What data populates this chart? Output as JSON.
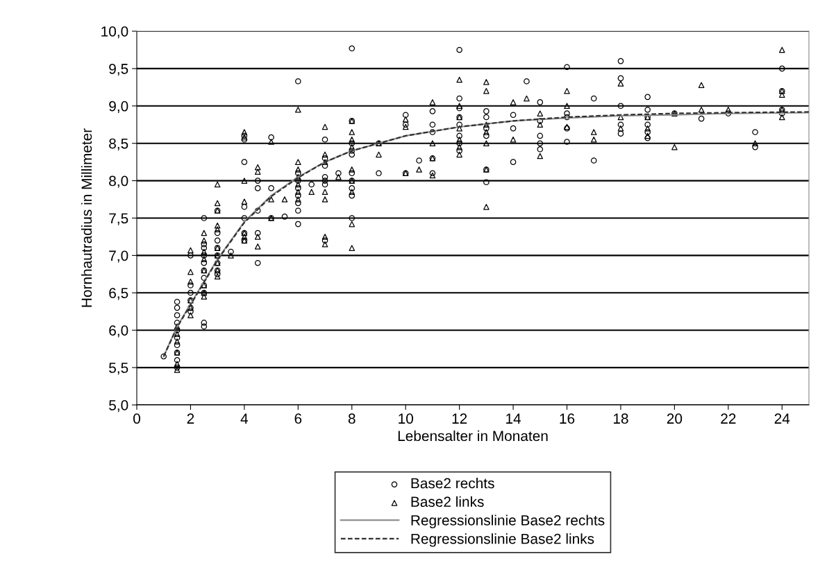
{
  "chart_data": {
    "type": "scatter",
    "xlabel": "Lebensalter in Monaten",
    "ylabel": "Hornhautradius in Millimeter",
    "xlim": [
      0,
      25
    ],
    "xticks": [
      0,
      2,
      4,
      6,
      8,
      10,
      12,
      14,
      16,
      18,
      20,
      22,
      24
    ],
    "ylim": [
      5,
      10
    ],
    "yticks": [
      {
        "value": 5,
        "label": "5,0"
      },
      {
        "value": 5.5,
        "label": "5,5"
      },
      {
        "value": 6,
        "label": "6,0"
      },
      {
        "value": 6.5,
        "label": "6,5"
      },
      {
        "value": 7,
        "label": "7,0"
      },
      {
        "value": 7.5,
        "label": "7,5"
      },
      {
        "value": 8,
        "label": "8,0"
      },
      {
        "value": 8.5,
        "label": "8,5"
      },
      {
        "value": 9,
        "label": "9,0"
      },
      {
        "value": 9.5,
        "label": "9,5"
      },
      {
        "value": 10,
        "label": "10,0"
      }
    ],
    "grid": "y",
    "legend": "bottom",
    "series": [
      {
        "name": "Base2 rechts",
        "marker": "circle",
        "color": "#000000",
        "x": [
          1,
          1.5,
          1.5,
          1.5,
          1.5,
          1.5,
          1.5,
          1.5,
          1.5,
          1.5,
          1.5,
          2,
          2,
          2,
          2,
          2,
          2,
          2.5,
          2.5,
          2.5,
          2.5,
          2.5,
          2.5,
          2.5,
          2.5,
          2.5,
          2.5,
          2.5,
          3,
          3,
          3,
          3,
          3,
          3,
          3,
          3,
          3.5,
          4,
          4,
          4,
          4,
          4,
          4,
          4,
          4.5,
          4.5,
          4.5,
          4.5,
          4.5,
          5,
          5,
          5,
          5.5,
          6,
          6,
          6,
          6,
          6,
          6,
          6,
          6,
          6.5,
          7,
          7,
          7,
          7,
          7,
          7,
          7,
          7.5,
          8,
          8,
          8,
          8,
          8,
          8,
          8,
          8,
          8,
          8,
          9,
          9,
          10,
          10,
          10,
          10.5,
          11,
          11,
          11,
          11,
          11,
          12,
          12,
          12,
          12,
          12,
          12,
          12,
          12,
          13,
          13,
          13,
          13,
          13,
          13,
          14,
          14,
          14,
          14.5,
          15,
          15,
          15,
          15,
          15,
          16,
          16,
          16,
          16,
          16,
          17,
          17,
          18,
          18,
          18,
          18,
          18,
          19,
          19,
          19,
          19,
          19,
          19,
          20,
          21,
          22,
          23,
          23,
          24,
          24,
          24,
          24
        ],
        "values": [
          5.65,
          6.38,
          6.3,
          6.2,
          6.1,
          6.0,
          5.9,
          5.8,
          5.7,
          5.6,
          5.5,
          7.0,
          6.6,
          6.5,
          6.4,
          6.3,
          6.25,
          7.5,
          7.15,
          7.1,
          7.0,
          6.9,
          6.8,
          6.7,
          6.6,
          6.5,
          6.1,
          6.05,
          7.6,
          7.3,
          7.2,
          7.1,
          7.0,
          6.9,
          6.8,
          6.75,
          7.05,
          8.6,
          8.55,
          8.25,
          7.65,
          7.5,
          7.3,
          7.2,
          8.0,
          7.9,
          7.6,
          7.3,
          6.9,
          8.58,
          7.9,
          7.5,
          7.52,
          9.33,
          8.1,
          8.0,
          7.9,
          7.8,
          7.7,
          7.6,
          7.42,
          7.95,
          8.55,
          8.3,
          8.2,
          8.05,
          8.0,
          7.95,
          7.2,
          8.1,
          9.77,
          8.8,
          8.5,
          8.4,
          8.35,
          8.1,
          8.0,
          7.9,
          7.8,
          7.5,
          8.5,
          8.1,
          8.88,
          8.75,
          8.1,
          8.27,
          8.93,
          8.75,
          8.65,
          8.3,
          8.1,
          9.75,
          9.1,
          8.97,
          8.85,
          8.75,
          8.6,
          8.5,
          8.4,
          8.93,
          8.85,
          8.7,
          8.6,
          8.15,
          7.98,
          8.88,
          8.7,
          8.25,
          9.33,
          9.05,
          8.8,
          8.6,
          8.5,
          8.42,
          9.52,
          8.9,
          8.85,
          8.7,
          8.52,
          9.1,
          8.27,
          9.6,
          9.37,
          9.0,
          8.75,
          8.63,
          9.12,
          8.95,
          8.85,
          8.75,
          8.65,
          8.57,
          8.9,
          8.83,
          8.9,
          8.65,
          8.45,
          9.5,
          9.2,
          8.95,
          8.9
        ]
      },
      {
        "name": "Base2 links",
        "marker": "triangle",
        "color": "#000000",
        "x": [
          1.5,
          1.5,
          1.5,
          1.5,
          1.5,
          1.5,
          2,
          2,
          2,
          2,
          2,
          2,
          2.5,
          2.5,
          2.5,
          2.5,
          2.5,
          2.5,
          2.5,
          2.5,
          3,
          3,
          3,
          3,
          3,
          3,
          3,
          3,
          3,
          3,
          3.5,
          4,
          4,
          4,
          4,
          4,
          4,
          4,
          4.5,
          4.5,
          4.5,
          4.5,
          5,
          5,
          5,
          5.5,
          6,
          6,
          6,
          6,
          6,
          6,
          6,
          6.5,
          7,
          7,
          7,
          7,
          7,
          7,
          7,
          7.5,
          8,
          8,
          8,
          8,
          8,
          8,
          8,
          8,
          8,
          9,
          9,
          10,
          10,
          10,
          10.5,
          11,
          11,
          11,
          11,
          12,
          12,
          12,
          12,
          12,
          12,
          12,
          13,
          13,
          13,
          13,
          13,
          13,
          13,
          14,
          14,
          14.5,
          15,
          15,
          15,
          16,
          16,
          16,
          17,
          17,
          18,
          18,
          18,
          19,
          19,
          19,
          20,
          20,
          21,
          21,
          22,
          23,
          24,
          24,
          24,
          24,
          24
        ],
        "values": [
          6.05,
          5.95,
          5.85,
          5.7,
          5.55,
          5.47,
          7.07,
          6.78,
          6.65,
          6.4,
          6.3,
          6.2,
          7.3,
          7.2,
          7.05,
          6.95,
          6.8,
          6.6,
          6.5,
          6.45,
          7.95,
          7.7,
          7.6,
          7.4,
          7.35,
          7.1,
          7.0,
          6.9,
          6.8,
          6.72,
          7.0,
          8.65,
          8.58,
          8.0,
          7.72,
          7.3,
          7.25,
          7.2,
          8.18,
          8.12,
          7.25,
          7.12,
          8.52,
          7.75,
          7.5,
          7.75,
          8.95,
          8.25,
          8.15,
          8.05,
          7.95,
          7.85,
          7.75,
          7.85,
          8.72,
          8.35,
          8.25,
          7.85,
          7.75,
          7.25,
          7.15,
          8.05,
          8.8,
          8.65,
          8.55,
          8.45,
          8.15,
          8.0,
          7.85,
          7.42,
          7.1,
          8.5,
          8.35,
          8.82,
          8.72,
          8.1,
          8.15,
          9.05,
          8.5,
          8.3,
          8.07,
          9.35,
          9.0,
          8.85,
          8.7,
          8.55,
          8.45,
          8.35,
          9.32,
          9.2,
          8.75,
          8.65,
          8.5,
          8.15,
          7.65,
          9.05,
          8.55,
          9.1,
          8.9,
          8.75,
          8.33,
          9.2,
          9.0,
          8.72,
          8.65,
          8.55,
          9.3,
          8.85,
          8.7,
          8.85,
          8.7,
          8.6,
          8.9,
          8.45,
          9.28,
          8.95,
          8.95,
          8.5,
          9.75,
          9.2,
          9.15,
          8.95,
          8.85
        ]
      },
      {
        "name": "Regressionslinie Base2 rechts",
        "type": "line",
        "line_style": "solid",
        "marker": "none",
        "color": "#909090",
        "x": [
          1,
          1.5,
          2,
          3,
          4,
          5,
          6,
          7,
          8,
          9,
          10,
          12,
          14,
          16,
          18,
          20,
          22,
          25
        ],
        "values": [
          5.65,
          6.05,
          6.35,
          6.95,
          7.45,
          7.8,
          8.05,
          8.25,
          8.4,
          8.5,
          8.6,
          8.72,
          8.8,
          8.84,
          8.87,
          8.88,
          8.9,
          8.91
        ]
      },
      {
        "name": "Regressionslinie Base2 links",
        "type": "line",
        "line_style": "dashed",
        "marker": "none",
        "color": "#303030",
        "x": [
          1,
          1.5,
          2,
          3,
          4,
          5,
          6,
          7,
          8,
          9,
          10,
          12,
          14,
          16,
          18,
          20,
          22,
          25
        ],
        "values": [
          5.65,
          6.04,
          6.34,
          6.94,
          7.44,
          7.79,
          8.04,
          8.25,
          8.4,
          8.5,
          8.6,
          8.72,
          8.8,
          8.85,
          8.88,
          8.9,
          8.91,
          8.92
        ]
      }
    ]
  }
}
